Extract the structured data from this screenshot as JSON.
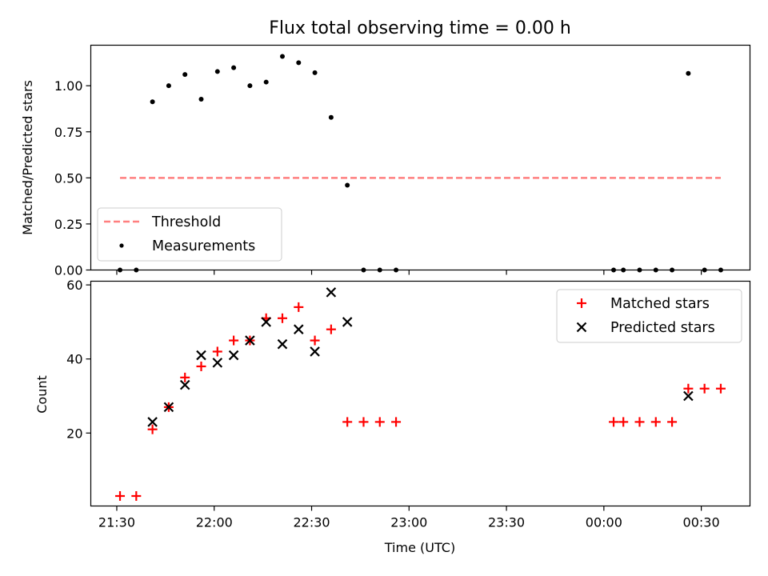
{
  "colors": {
    "threshold": "#ff7f7f",
    "measurements": "#000000",
    "matched": "#ff0000",
    "predicted": "#000000"
  },
  "chart_data": [
    {
      "type": "scatter",
      "title": "Flux total observing time = 0.00 h",
      "ylabel": "Matched/Predicted stars",
      "xlabel": "",
      "ylim": [
        0,
        1.22
      ],
      "yticks": [
        0.0,
        0.25,
        0.5,
        0.75,
        1.0
      ],
      "ytick_labels": [
        "0.00",
        "0.25",
        "0.50",
        "0.75",
        "1.00"
      ],
      "legend": {
        "position": "lower-left",
        "entries": [
          "Threshold",
          "Measurements"
        ]
      },
      "threshold": {
        "name": "Threshold",
        "value": 0.5,
        "x_start": "21:31",
        "x_end": "00:36"
      },
      "series": [
        {
          "name": "Measurements",
          "x": [
            "21:31",
            "21:36",
            "21:41",
            "21:46",
            "21:51",
            "21:56",
            "22:01",
            "22:06",
            "22:11",
            "22:16",
            "22:21",
            "22:26",
            "22:31",
            "22:36",
            "22:41",
            "22:46",
            "22:51",
            "22:56",
            "00:03",
            "00:06",
            "00:11",
            "00:16",
            "00:21",
            "00:26",
            "00:31",
            "00:36"
          ],
          "y": [
            0.0,
            0.0,
            0.913,
            1.0,
            1.061,
            0.927,
            1.077,
            1.098,
            1.0,
            1.02,
            1.159,
            1.125,
            1.071,
            0.828,
            0.46,
            0.0,
            0.0,
            0.0,
            0.0,
            0.0,
            0.0,
            0.0,
            0.0,
            1.067,
            0.0,
            0.0
          ]
        }
      ]
    },
    {
      "type": "scatter",
      "title": "",
      "ylabel": "Count",
      "xlabel": "Time (UTC)",
      "ylim": [
        0.3,
        61
      ],
      "yticks": [
        20,
        40,
        60
      ],
      "ytick_labels": [
        "20",
        "40",
        "60"
      ],
      "xticks": [
        "21:30",
        "22:00",
        "22:30",
        "23:00",
        "23:30",
        "00:00",
        "00:30"
      ],
      "xlim": [
        "21:22",
        "00:45"
      ],
      "legend": {
        "position": "top-right",
        "entries": [
          "Matched stars",
          "Predicted stars"
        ]
      },
      "series": [
        {
          "name": "Matched stars",
          "x": [
            "21:31",
            "21:36",
            "21:41",
            "21:46",
            "21:51",
            "21:56",
            "22:01",
            "22:06",
            "22:11",
            "22:16",
            "22:21",
            "22:26",
            "22:31",
            "22:36",
            "22:41",
            "22:46",
            "22:51",
            "22:56",
            "00:03",
            "00:06",
            "00:11",
            "00:16",
            "00:21",
            "00:26",
            "00:31",
            "00:36"
          ],
          "y": [
            3,
            3,
            21,
            27,
            35,
            38,
            42,
            45,
            45,
            51,
            51,
            54,
            45,
            48,
            23,
            23,
            23,
            23,
            23,
            23,
            23,
            23,
            23,
            32,
            32,
            32
          ]
        },
        {
          "name": "Predicted stars",
          "x": [
            "21:41",
            "21:46",
            "21:51",
            "21:56",
            "22:01",
            "22:06",
            "22:11",
            "22:16",
            "22:21",
            "22:26",
            "22:31",
            "22:36",
            "22:41",
            "00:26"
          ],
          "y": [
            23,
            27,
            33,
            41,
            39,
            41,
            45,
            50,
            44,
            48,
            42,
            58,
            50,
            30
          ]
        }
      ]
    }
  ]
}
